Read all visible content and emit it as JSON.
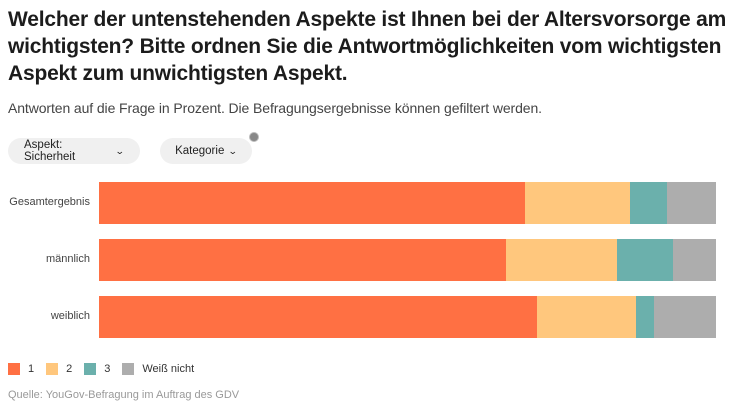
{
  "header": {
    "title": "Welcher der untenstehenden Aspekte ist Ihnen bei der Altersvorsorge am wichtigsten? Bitte ordnen Sie die Antwortmöglichkeiten vom wichtigsten Aspekt zum unwichtigsten Aspekt.",
    "subtitle": "Antworten auf die Frage in Prozent. Die Befragungsergebnisse können gefiltert werden."
  },
  "filters": {
    "aspect_label": "Aspekt: Sicherheit",
    "category_label": "Kategorie",
    "chevron_icon": "chevron-down-icon",
    "info_icon": "info-icon"
  },
  "chart_data": {
    "type": "bar",
    "orientation": "horizontal",
    "stacked": true,
    "unit": "%",
    "categories": [
      "Gesamtergebnis",
      "männlich",
      "weiblich"
    ],
    "series": [
      {
        "name": "1",
        "color": "#ff7043",
        "values": [
          69,
          66,
          71
        ]
      },
      {
        "name": "2",
        "color": "#ffc77d",
        "values": [
          17,
          18,
          16
        ]
      },
      {
        "name": "3",
        "color": "#6bb0ac",
        "values": [
          6,
          9,
          3
        ]
      },
      {
        "name": "Weiß nicht",
        "color": "#adadad",
        "values": [
          8,
          7,
          10
        ]
      }
    ],
    "xlim": [
      0,
      100
    ],
    "legend_position": "bottom-left",
    "grid": false
  },
  "footer": {
    "source": "Quelle: YouGov-Befragung im Auftrag des GDV"
  }
}
